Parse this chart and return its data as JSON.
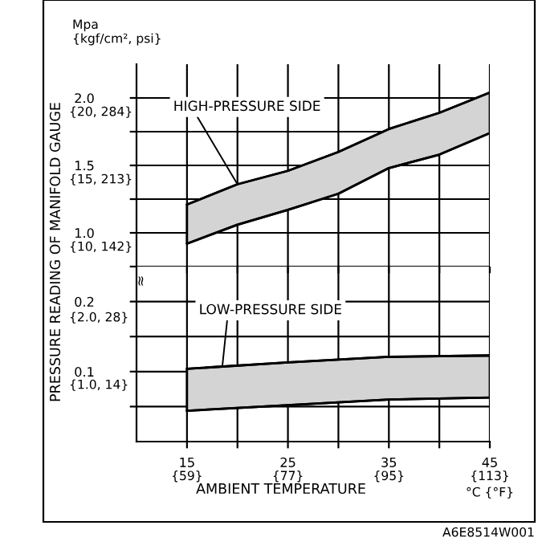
{
  "chart_data": [
    {
      "type": "line",
      "ylabel": "PRESSURE READING OF MANIFOLD GAUGE",
      "x": [
        15,
        20,
        25,
        30,
        35,
        40,
        45
      ],
      "series": [
        {
          "name": null,
          "color": "#000000",
          "values": [
            0.92,
            1.06,
            1.17,
            1.29,
            1.48,
            1.58,
            1.74
          ]
        },
        {
          "name": null,
          "color": "#000000",
          "values": [
            1.21,
            1.36,
            1.46,
            1.6,
            1.77,
            1.89,
            2.04
          ],
          "lower": [
            0.92,
            1.06,
            1.17,
            1.29,
            1.48,
            1.58,
            1.74
          ],
          "upper": [
            1.21,
            1.36,
            1.46,
            1.6,
            1.77,
            1.89,
            2.04
          ]
        }
      ],
      "xlim": [
        10,
        45
      ],
      "ylim": [
        0.75,
        2.25
      ],
      "xticks": [
        15,
        {
          "value": 20,
          "label": null
        },
        25,
        {
          "value": 30,
          "label": null
        },
        35,
        {
          "value": 40,
          "label": null
        },
        45
      ],
      "yticks": [
        {
          "value": 0.75,
          "label": null
        },
        {
          "value": 1.0,
          "label": "1.0"
        },
        {
          "value": 1.25,
          "label": null
        },
        {
          "value": 1.5,
          "label": "1.5"
        },
        {
          "value": 1.75,
          "label": null
        },
        {
          "value": 2.0,
          "label": "2.0"
        }
      ],
      "tick_labels": "y",
      "grid": true,
      "marker": "none",
      "line_style": "solid",
      "annotations": [
        {
          "text": "HIGH-PRESSURE SIDE",
          "x": 20,
          "y": 1.36
        },
        "Mpa\n{kgf/cm², psi}",
        "{20, 284}",
        "{15, 213}",
        "{10, 142}"
      ]
    },
    {
      "type": "line",
      "xlabel": "AMBIENT TEMPERATURE",
      "x": [
        15,
        25,
        35,
        45
      ],
      "series": [
        {
          "name": null,
          "color": "#000000",
          "values": [
            0.044,
            0.052,
            0.06,
            0.063
          ]
        },
        {
          "name": null,
          "color": "#000000",
          "values": [
            0.104,
            0.113,
            0.121,
            0.123
          ],
          "lower": [
            0.044,
            0.052,
            0.06,
            0.063
          ],
          "upper": [
            0.104,
            0.113,
            0.121,
            0.123
          ]
        }
      ],
      "x2lim": [
        50,
        113
      ],
      "x2ticks": [
        {
          "value": 59,
          "label": "{59}"
        },
        {
          "value": 77,
          "label": "{77}"
        },
        {
          "value": 95,
          "label": "{95}"
        },
        {
          "value": 113,
          "label": "{113}"
        }
      ],
      "xlim": [
        10,
        45
      ],
      "ylim": [
        0,
        0.25
      ],
      "xticks": [
        15,
        {
          "value": 20,
          "label": null
        },
        25,
        {
          "value": 30,
          "label": null
        },
        35,
        {
          "value": 40,
          "label": null
        },
        45
      ],
      "yticks": [
        {
          "value": 0.05,
          "label": null
        },
        {
          "value": 0.1,
          "label": "0.1"
        },
        {
          "value": 0.15,
          "label": null
        },
        {
          "value": 0.2,
          "label": "0.2"
        }
      ],
      "grid": true,
      "marker": "none",
      "line_style": "solid",
      "annotations": [
        {
          "text": "LOW-PRESSURE SIDE",
          "x": 18.5,
          "y": 0.107
        },
        "≈",
        "°C {°F}",
        "A6E8514W001",
        "{2.0, 28}",
        "{1.0, 14}"
      ]
    }
  ]
}
